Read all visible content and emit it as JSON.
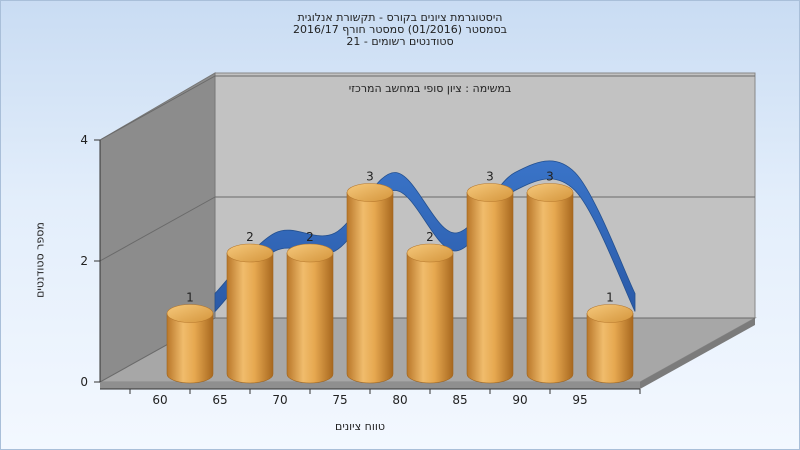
{
  "window": {
    "title_lines": [
      "היסטוגרמת ציונים בקורס - תקשורת אנלוגית",
      "בסמסטר  (01/2016)  סמסטר חורף  2016/17",
      "סטודנטים רשומים - 21"
    ]
  },
  "chart_data": {
    "type": "bar",
    "title": "היסטוגרמת ציונים בקורס - תקשורת אנלוגית",
    "subtitle": "במשימה : ציון סופי במחשב המרכזי",
    "xlabel": "טווח ציונים",
    "ylabel": "מספר סטודנטים",
    "x_ticks": [
      "60",
      "65",
      "70",
      "75",
      "80",
      "85",
      "90",
      "95"
    ],
    "y_ticks": [
      "0",
      "2",
      "4"
    ],
    "ylim": [
      0,
      4
    ],
    "values": [
      1,
      2,
      2,
      3,
      2,
      3,
      3,
      1
    ],
    "data_labels": [
      "1",
      "2",
      "2",
      "3",
      "2",
      "3",
      "3",
      "1"
    ],
    "series": [
      {
        "name": "",
        "values": [
          1,
          2,
          2,
          3,
          2,
          3,
          3,
          1
        ],
        "style": "3d-cylinder",
        "color": "#e0a24a"
      },
      {
        "name": "",
        "values": [
          1,
          2,
          2,
          3,
          2,
          3,
          3,
          1
        ],
        "style": "3d-ribbon",
        "color": "#2f64b4"
      }
    ],
    "colors": {
      "bar": "#e0a24a",
      "bar_dark": "#b9772a",
      "ribbon": "#2f64b4",
      "back_wall": "#c2c2c2",
      "side_wall": "#8c8c8c",
      "floor": "#a7a7a7"
    },
    "grid": true,
    "legend": "none"
  }
}
